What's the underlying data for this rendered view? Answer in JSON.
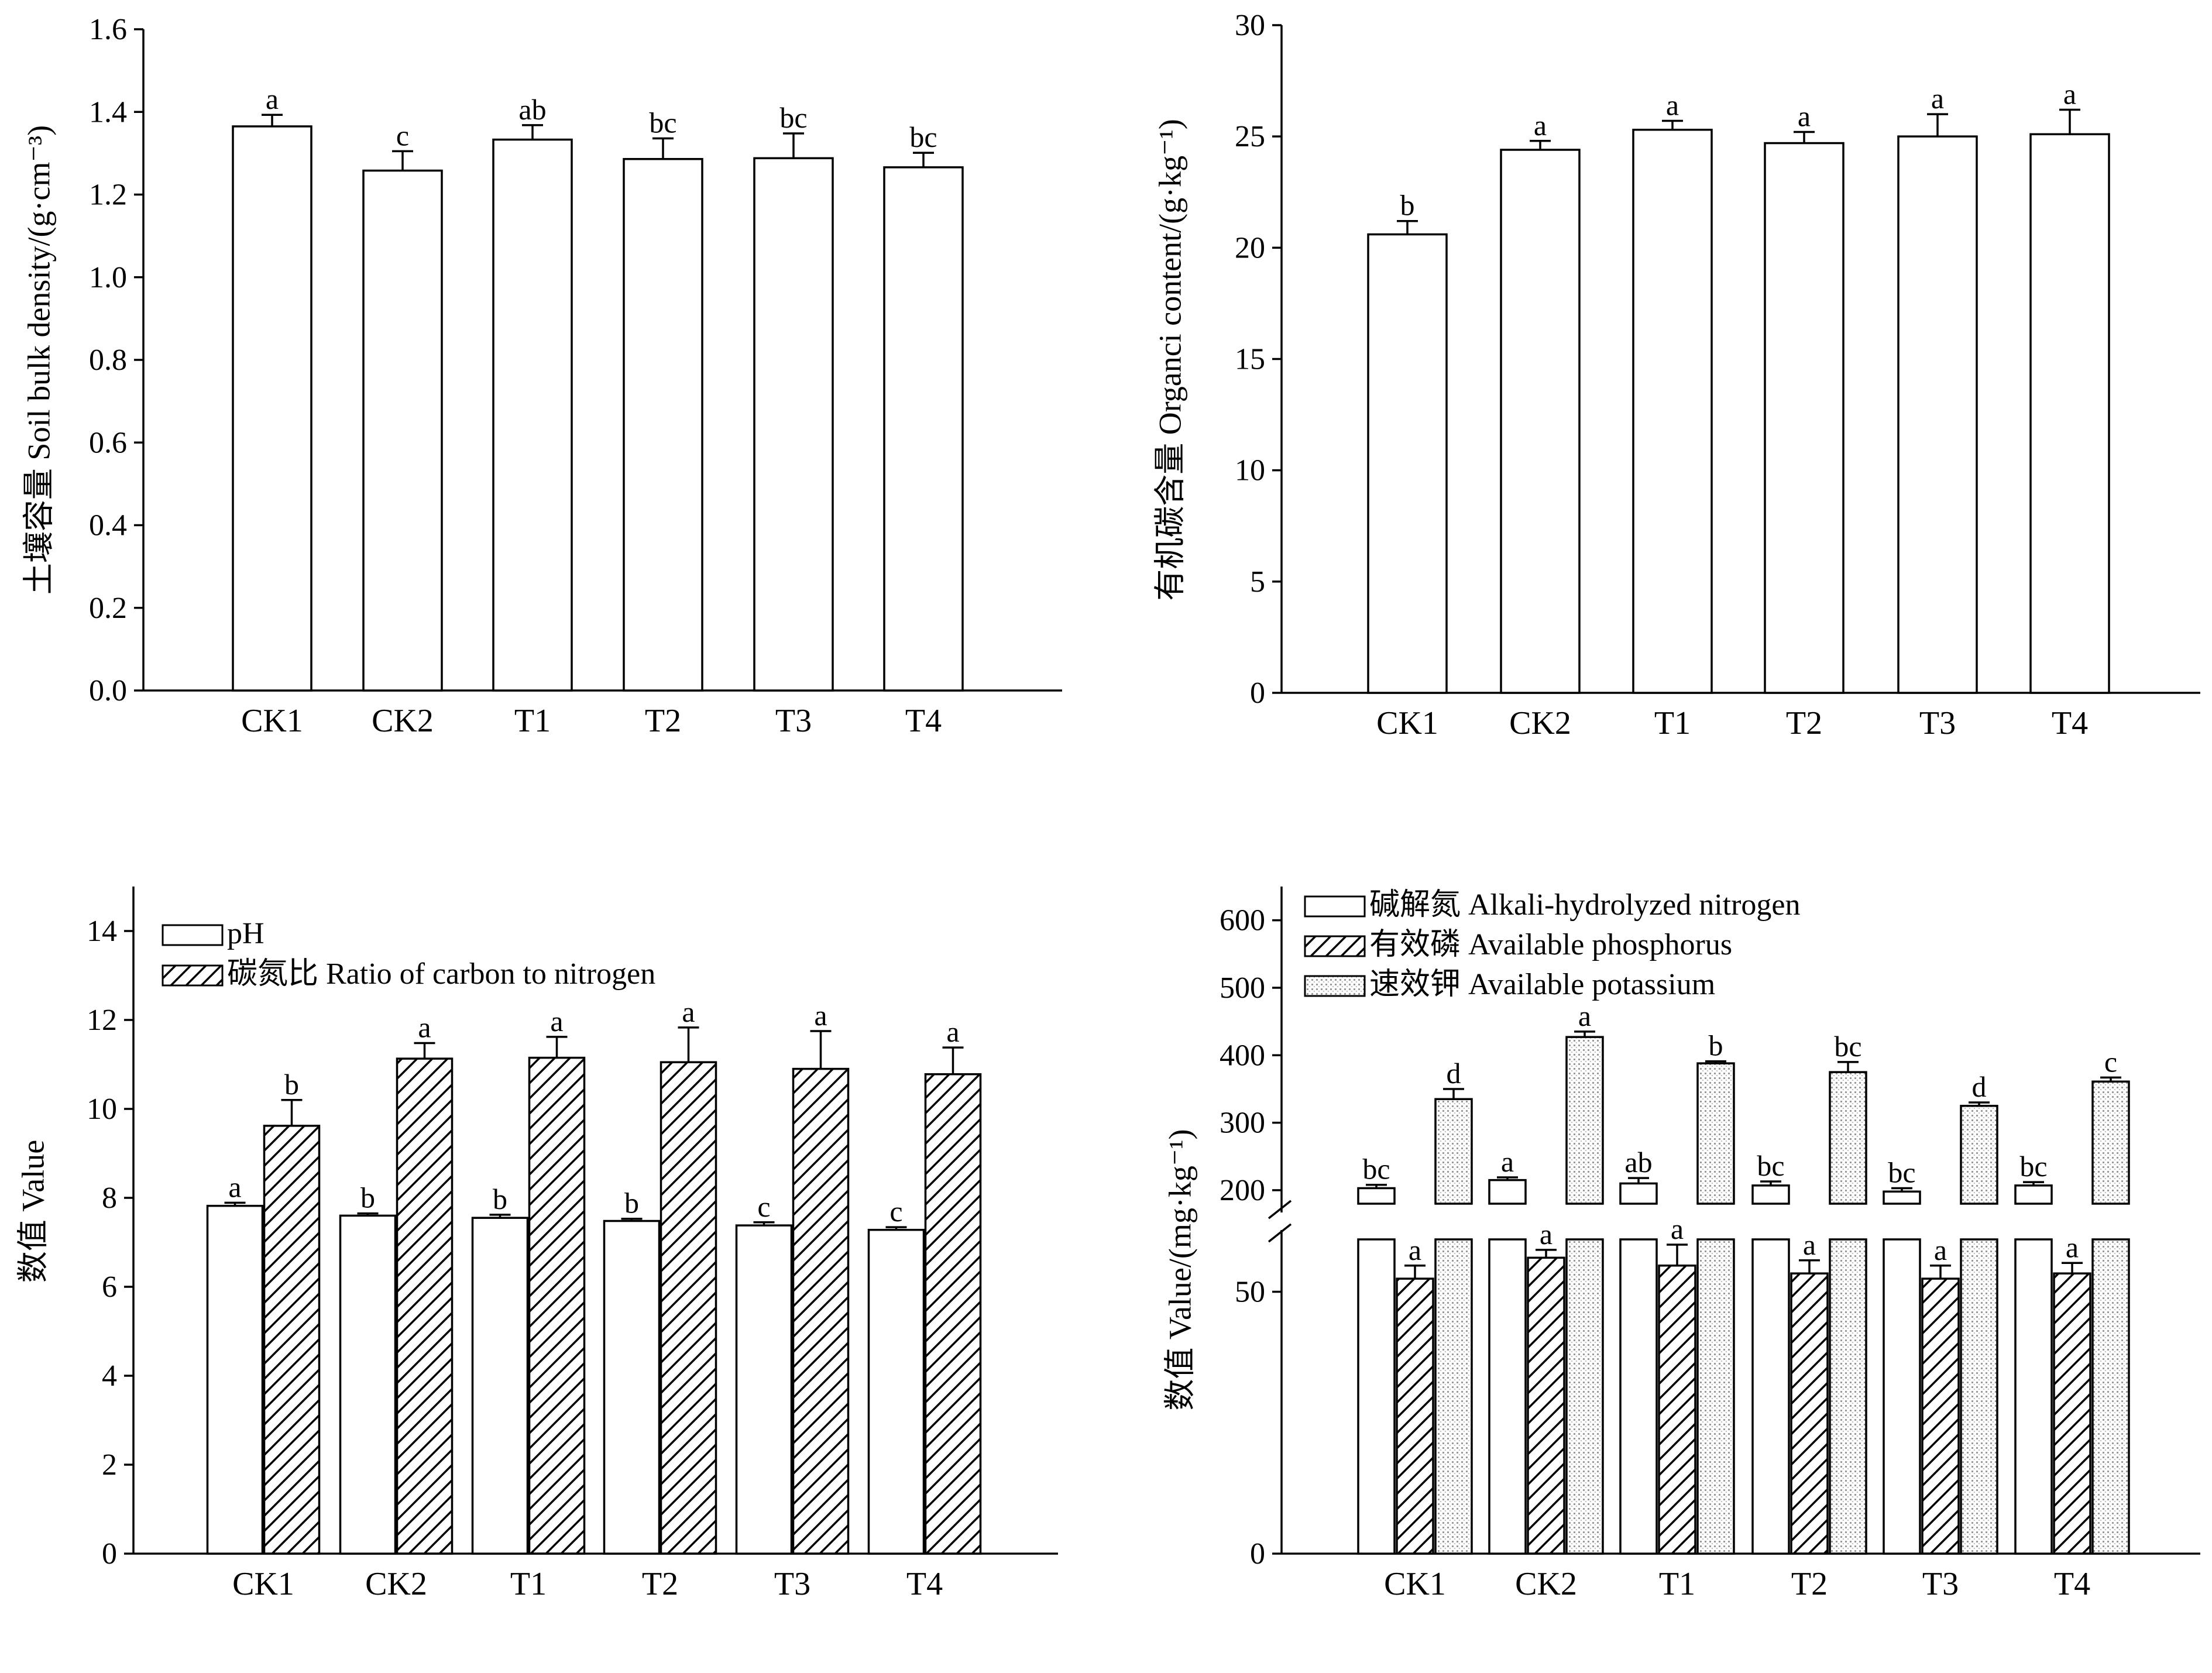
{
  "chart_data": [
    {
      "type": "bar",
      "ylabel": "土壤容量 Soil bulk density/(g·cm⁻³)",
      "ylim": [
        0,
        1.6
      ],
      "yticks": [
        "0.0",
        "0.2",
        "0.4",
        "0.6",
        "0.8",
        "1.0",
        "1.2",
        "1.4",
        "1.6"
      ],
      "categories": [
        "CK1",
        "CK2",
        "T1",
        "T2",
        "T3",
        "T4"
      ],
      "series": [
        {
          "fill": "plain",
          "values": [
            1.365,
            1.258,
            1.333,
            1.286,
            1.288,
            1.266
          ],
          "errors": [
            0.028,
            0.047,
            0.035,
            0.05,
            0.06,
            0.035
          ],
          "letters": [
            "a",
            "c",
            "ab",
            "bc",
            "bc",
            "bc"
          ]
        }
      ]
    },
    {
      "type": "bar",
      "ylabel": "有机碳含量 Organci content/(g·kg⁻¹)",
      "ylim": [
        0,
        30
      ],
      "yticks": [
        "0",
        "5",
        "10",
        "15",
        "20",
        "25",
        "30"
      ],
      "categories": [
        "CK1",
        "CK2",
        "T1",
        "T2",
        "T3",
        "T4"
      ],
      "series": [
        {
          "fill": "plain",
          "values": [
            20.6,
            24.4,
            25.3,
            24.7,
            25.0,
            25.1
          ],
          "errors": [
            0.6,
            0.4,
            0.4,
            0.5,
            1.0,
            1.1
          ],
          "letters": [
            "b",
            "a",
            "a",
            "a",
            "a",
            "a"
          ]
        }
      ]
    },
    {
      "type": "bar",
      "ylabel": "数值 Value",
      "ylim": [
        0,
        15
      ],
      "yticks": [
        "0",
        "2",
        "4",
        "6",
        "8",
        "10",
        "12",
        "14"
      ],
      "categories": [
        "CK1",
        "CK2",
        "T1",
        "T2",
        "T3",
        "T4"
      ],
      "legend": [
        "pH",
        "碳氮比 Ratio of carbon to nitrogen"
      ],
      "series": [
        {
          "name": "pH",
          "fill": "plain",
          "values": [
            7.82,
            7.6,
            7.55,
            7.48,
            7.38,
            7.28
          ],
          "errors": [
            0.07,
            0.05,
            0.07,
            0.05,
            0.07,
            0.06
          ],
          "letters": [
            "a",
            "b",
            "b",
            "b",
            "c",
            "c"
          ]
        },
        {
          "name": "碳氮比 Ratio of carbon to nitrogen",
          "fill": "hatch",
          "values": [
            9.62,
            11.13,
            11.15,
            11.05,
            10.9,
            10.78
          ],
          "errors": [
            0.58,
            0.35,
            0.47,
            0.78,
            0.85,
            0.6
          ],
          "letters": [
            "b",
            "a",
            "a",
            "a",
            "a",
            "a"
          ]
        }
      ]
    },
    {
      "type": "bar",
      "ylabel": "数值 Value/(mg·kg⁻¹)",
      "ylim": [
        0,
        650
      ],
      "broken_axis": true,
      "yticks": [
        "0",
        "50",
        "200",
        "300",
        "400",
        "500",
        "600"
      ],
      "categories": [
        "CK1",
        "CK2",
        "T1",
        "T2",
        "T3",
        "T4"
      ],
      "legend": [
        "碱解氮 Alkali-hydrolyzed nitrogen",
        "有效磷 Available phosphorus",
        "速效钾 Available potassium"
      ],
      "series": [
        {
          "name": "碱解氮 Alkali-hydrolyzed nitrogen",
          "fill": "plain",
          "values": [
            203,
            215,
            210,
            207,
            198,
            207
          ],
          "errors": [
            5,
            4,
            8,
            6,
            5,
            5
          ],
          "letters": [
            "bc",
            "a",
            "ab",
            "bc",
            "bc",
            "bc"
          ]
        },
        {
          "name": "有效磷 Available phosphorus",
          "fill": "hatch",
          "values": [
            52.5,
            56.5,
            55.0,
            53.5,
            52.5,
            53.5
          ],
          "errors": [
            2.5,
            1.5,
            4.0,
            2.5,
            2.5,
            2.0
          ],
          "letters": [
            "a",
            "a",
            "a",
            "a",
            "a",
            "a"
          ]
        },
        {
          "name": "速效钾 Available potassium",
          "fill": "dots",
          "values": [
            335,
            427,
            388,
            375,
            325,
            361
          ],
          "errors": [
            15,
            8,
            3,
            15,
            5,
            6
          ],
          "letters": [
            "d",
            "a",
            "b",
            "bc",
            "d",
            "c"
          ]
        }
      ]
    }
  ]
}
